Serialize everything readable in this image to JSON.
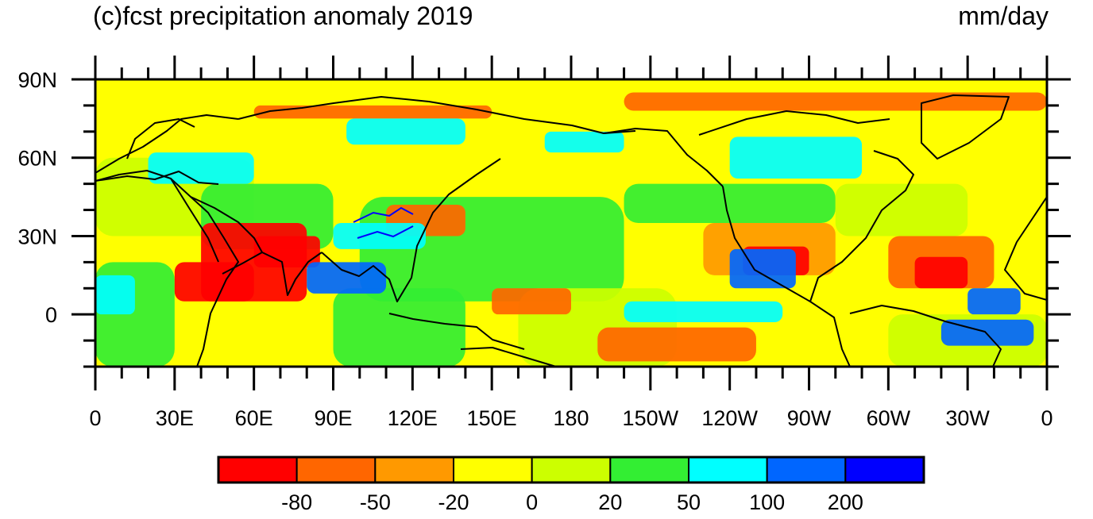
{
  "title": "(c)fcst precipitation anomaly 2019",
  "units": "mm/day",
  "map": {
    "projection": "cylindrical-equidistant",
    "lon_range": [
      0,
      360
    ],
    "lat_range": [
      -20,
      90
    ],
    "field": "precipitation anomaly",
    "lon_ticks": [
      "0",
      "30E",
      "60E",
      "90E",
      "120E",
      "150E",
      "180",
      "150W",
      "120W",
      "90W",
      "60W",
      "30W",
      "0"
    ],
    "lat_ticks": [
      "90N",
      "60N",
      "30N",
      "0"
    ],
    "lat_tick_values": [
      90,
      60,
      30,
      0
    ]
  },
  "colorbar": {
    "labels": [
      "-80",
      "-50",
      "-20",
      "0",
      "20",
      "50",
      "100",
      "200"
    ],
    "colors": [
      "#ff0000",
      "#ff6600",
      "#ff9900",
      "#ffff00",
      "#ccff00",
      "#33ee33",
      "#00ffff",
      "#0066ff",
      "#0000ff"
    ]
  }
}
